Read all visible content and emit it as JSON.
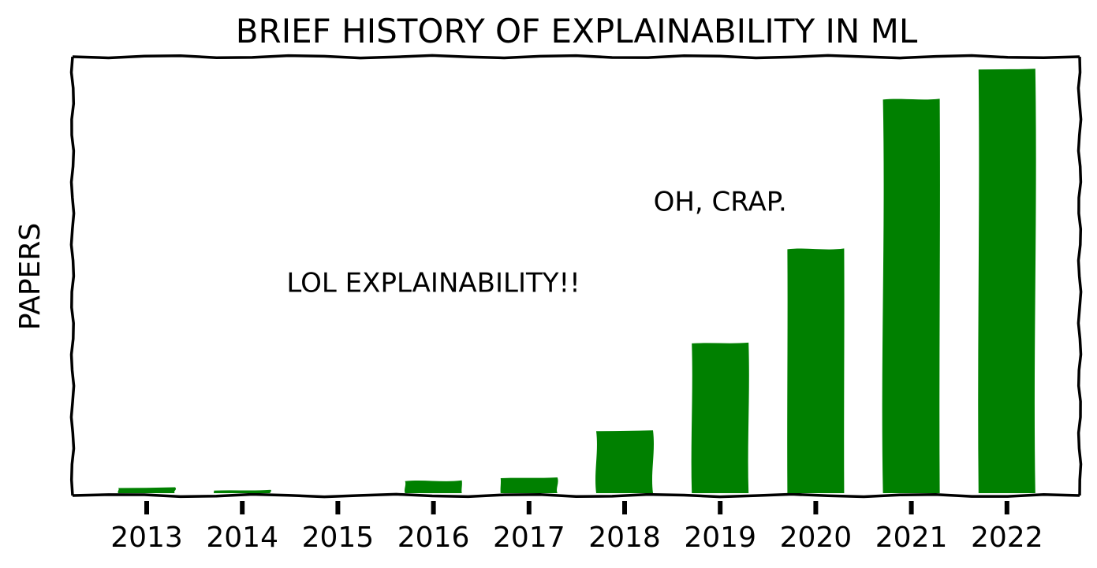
{
  "chart_data": {
    "type": "bar",
    "title": "BRIEF HISTORY OF EXPLAINABILITY IN ML",
    "xlabel": "",
    "ylabel": "PAPERS",
    "categories": [
      "2013",
      "2014",
      "2015",
      "2016",
      "2017",
      "2018",
      "2019",
      "2020",
      "2021",
      "2022"
    ],
    "values": [
      1.2,
      0.6,
      0,
      2.8,
      3.5,
      14.5,
      35,
      57,
      92,
      99
    ],
    "ylim": [
      0,
      102
    ],
    "y_ticks_shown": false,
    "grid": false,
    "style": "xkcd",
    "bar_color": "#008000",
    "annotations": [
      {
        "text": "LOL EXPLAINABILITY!!",
        "category": "2016",
        "y": 47
      },
      {
        "text": "OH, CRAP.",
        "category": "2019",
        "y": 66
      }
    ]
  }
}
